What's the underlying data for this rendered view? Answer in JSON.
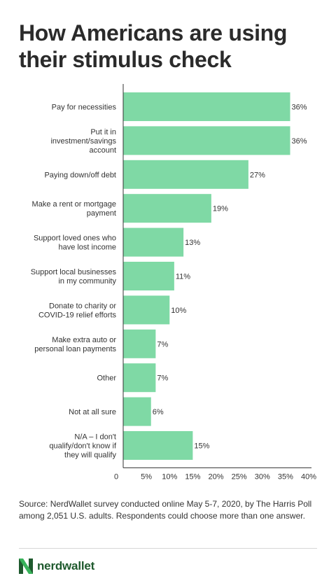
{
  "title": "How Americans are using their stimulus check",
  "source_note": "Source: NerdWallet survey conducted online May 5-7, 2020, by The Harris Poll among 2,051 U.S. adults. Respondents could choose more than one answer.",
  "brand": {
    "name": "nerdwallet",
    "logo_icon": "nerdwallet-logo-icon"
  },
  "colors": {
    "bar": "#7fd9a5",
    "text": "#333333",
    "axis": "#333333",
    "logo": "#1f5a2e",
    "logo_accent": "#38b35a"
  },
  "chart_data": {
    "type": "bar",
    "orientation": "horizontal",
    "categories": [
      [
        "Pay for necessities"
      ],
      [
        "Put it in",
        "investment/savings",
        "account"
      ],
      [
        "Paying down/off debt"
      ],
      [
        "Make a rent or mortgage",
        "payment"
      ],
      [
        "Support loved ones who",
        "have lost income"
      ],
      [
        "Support local businesses",
        "in my community"
      ],
      [
        "Donate to charity or",
        "COVID-19 relief efforts"
      ],
      [
        "Make extra auto or",
        "personal loan payments"
      ],
      [
        "Other"
      ],
      [
        "Not at all sure"
      ],
      [
        "N/A – I don't",
        "qualify/don't know if",
        "they will qualify"
      ]
    ],
    "values": [
      36,
      36,
      27,
      19,
      13,
      11,
      10,
      7,
      7,
      6,
      15
    ],
    "value_labels": [
      "36%",
      "36%",
      "27%",
      "19%",
      "13%",
      "11%",
      "10%",
      "7%",
      "7%",
      "6%",
      "15%"
    ],
    "x_ticks": [
      0,
      5,
      10,
      15,
      20,
      25,
      30,
      35,
      40
    ],
    "x_tick_labels": [
      "0",
      "5%",
      "10%",
      "15%",
      "20%",
      "25%",
      "30%",
      "35%",
      "40%"
    ],
    "xlim": [
      0,
      40
    ],
    "grid": false,
    "legend": "none"
  }
}
